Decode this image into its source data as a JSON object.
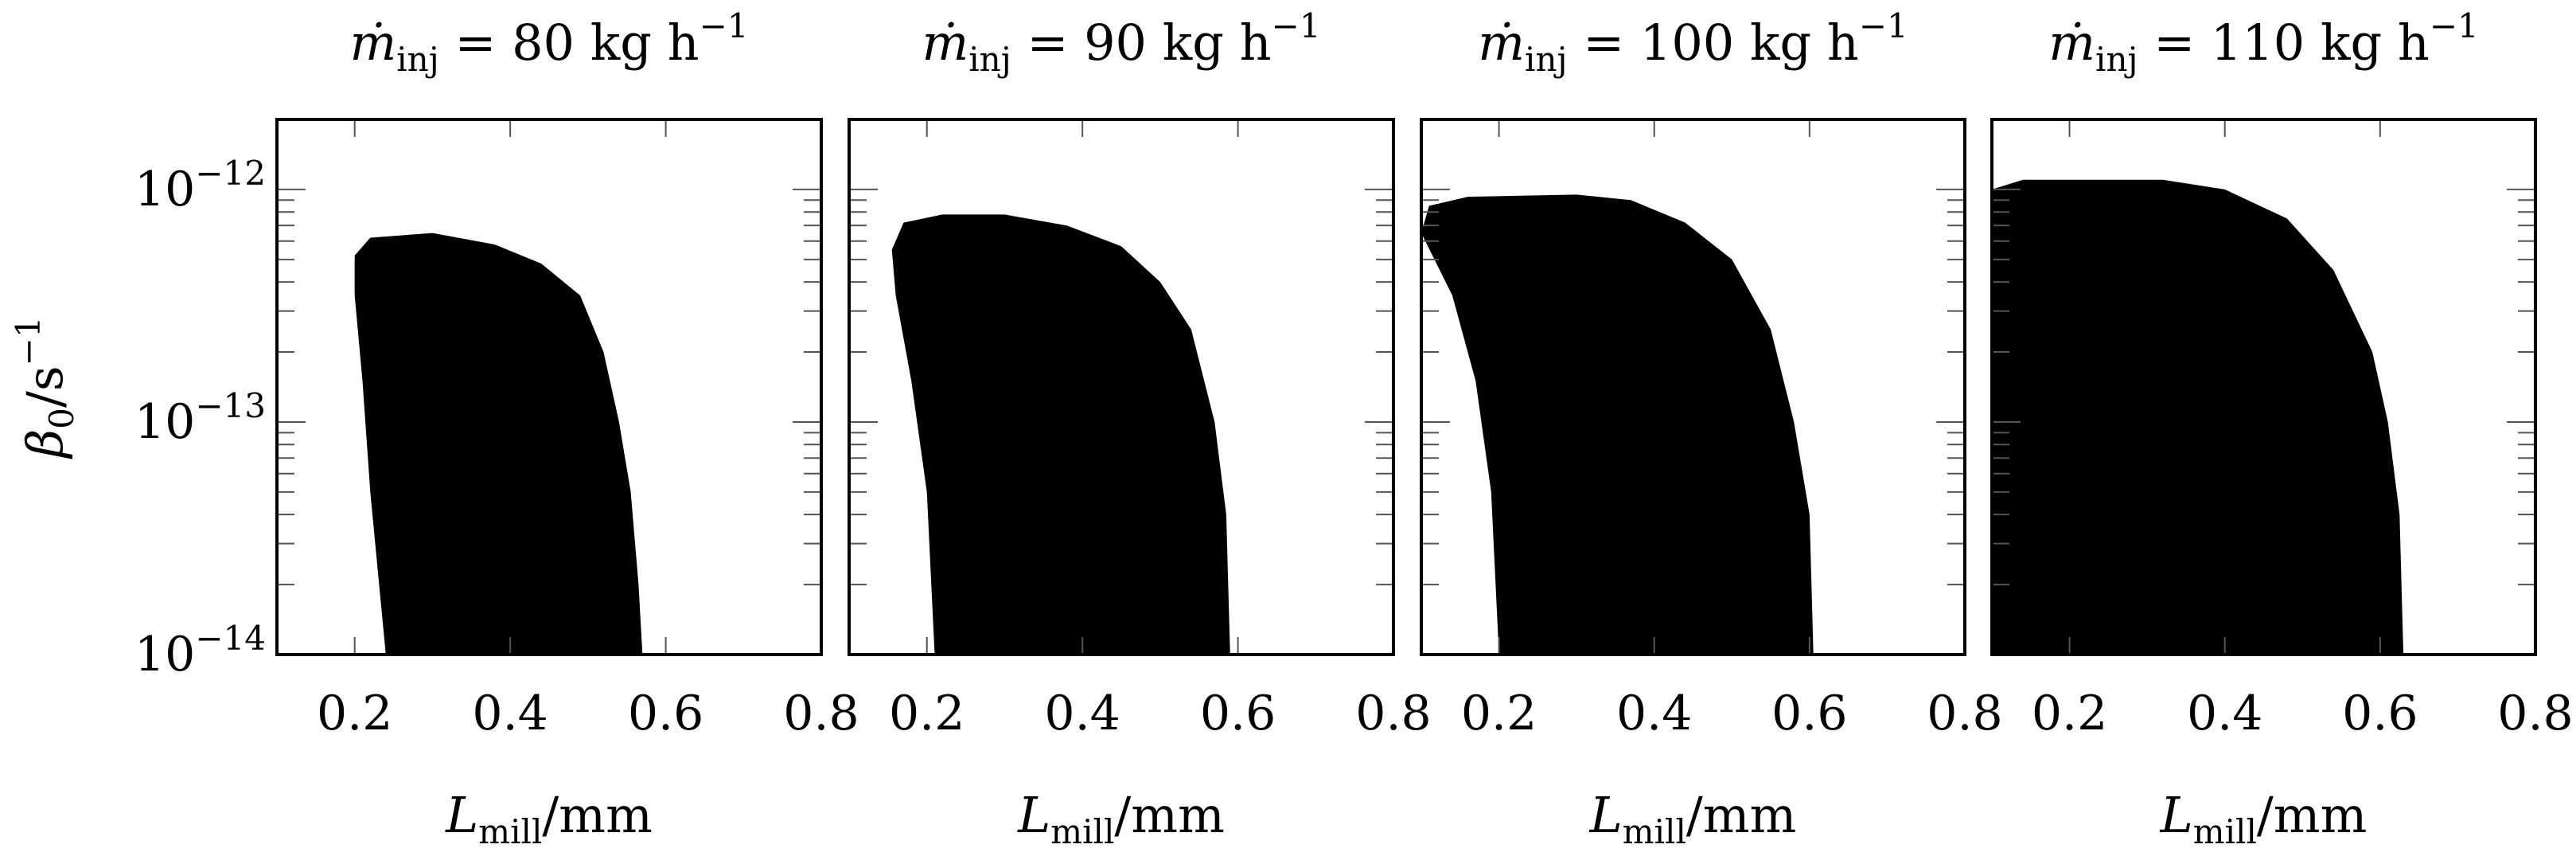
{
  "chart_data": [
    {
      "type": "area",
      "title": "ṁinj = 80 kg h−1",
      "title_parts": {
        "symbol": "ṁ",
        "sub": "inj",
        "value": " = 80 kg h",
        "sup": "−1"
      },
      "xlabel_parts": {
        "symbol": "L",
        "sub": "mill",
        "unit": "/mm"
      },
      "ylabel_parts": {
        "symbol": "β",
        "sub": "0",
        "unit": "/s",
        "sup": "−1"
      },
      "xlim": [
        0.1,
        0.8
      ],
      "ylim": [
        1e-14,
        2e-12
      ],
      "yscale": "log",
      "x_ticks": [
        0.2,
        0.4,
        0.6,
        0.8
      ],
      "x_tick_labels": [
        "0.2",
        "0.4",
        "0.6",
        "0.8"
      ],
      "y_ticks": [
        1e-14,
        1e-13,
        1e-12
      ],
      "y_tick_labels": [
        {
          "base": "10",
          "exp": "−14"
        },
        {
          "base": "10",
          "exp": "−13"
        },
        {
          "base": "10",
          "exp": "−12"
        }
      ],
      "series": [
        {
          "region": [
            [
              0.24,
              1e-14
            ],
            [
              0.22,
              5e-14
            ],
            [
              0.21,
              1.5e-13
            ],
            [
              0.2,
              3.5e-13
            ],
            [
              0.2,
              5.2e-13
            ],
            [
              0.22,
              6.2e-13
            ],
            [
              0.3,
              6.5e-13
            ],
            [
              0.38,
              5.8e-13
            ],
            [
              0.44,
              4.8e-13
            ],
            [
              0.49,
              3.5e-13
            ],
            [
              0.52,
              2e-13
            ],
            [
              0.54,
              1e-13
            ],
            [
              0.555,
              5e-14
            ],
            [
              0.565,
              2e-14
            ],
            [
              0.57,
              1e-14
            ]
          ]
        }
      ]
    },
    {
      "type": "area",
      "title": "ṁinj = 90 kg h−1",
      "title_parts": {
        "symbol": "ṁ",
        "sub": "inj",
        "value": " = 90 kg h",
        "sup": "−1"
      },
      "xlabel_parts": {
        "symbol": "L",
        "sub": "mill",
        "unit": "/mm"
      },
      "xlim": [
        0.1,
        0.8
      ],
      "ylim": [
        1e-14,
        2e-12
      ],
      "yscale": "log",
      "x_ticks": [
        0.2,
        0.4,
        0.6,
        0.8
      ],
      "x_tick_labels": [
        "0.2",
        "0.4",
        "0.6",
        "0.8"
      ],
      "y_ticks": [
        1e-14,
        1e-13,
        1e-12
      ],
      "series": [
        {
          "region": [
            [
              0.21,
              1e-14
            ],
            [
              0.2,
              5e-14
            ],
            [
              0.18,
              1.5e-13
            ],
            [
              0.16,
              3.5e-13
            ],
            [
              0.155,
              5.5e-13
            ],
            [
              0.17,
              7.2e-13
            ],
            [
              0.22,
              7.8e-13
            ],
            [
              0.3,
              7.8e-13
            ],
            [
              0.38,
              7e-13
            ],
            [
              0.45,
              5.7e-13
            ],
            [
              0.5,
              4e-13
            ],
            [
              0.54,
              2.5e-13
            ],
            [
              0.57,
              1e-13
            ],
            [
              0.585,
              4e-14
            ],
            [
              0.59,
              1e-14
            ]
          ]
        }
      ]
    },
    {
      "type": "area",
      "title": "ṁinj = 100 kg h−1",
      "title_parts": {
        "symbol": "ṁ",
        "sub": "inj",
        "value": " = 100 kg h",
        "sup": "−1"
      },
      "xlabel_parts": {
        "symbol": "L",
        "sub": "mill",
        "unit": "/mm"
      },
      "xlim": [
        0.1,
        0.8
      ],
      "ylim": [
        1e-14,
        2e-12
      ],
      "yscale": "log",
      "x_ticks": [
        0.2,
        0.4,
        0.6,
        0.8
      ],
      "x_tick_labels": [
        "0.2",
        "0.4",
        "0.6",
        "0.8"
      ],
      "y_ticks": [
        1e-14,
        1e-13,
        1e-12
      ],
      "series": [
        {
          "region": [
            [
              0.2,
              1e-14
            ],
            [
              0.19,
              5e-14
            ],
            [
              0.17,
              1.5e-13
            ],
            [
              0.14,
              3.5e-13
            ],
            [
              0.1,
              6.5e-13
            ],
            [
              0.11,
              8.5e-13
            ],
            [
              0.16,
              9.3e-13
            ],
            [
              0.3,
              9.5e-13
            ],
            [
              0.37,
              9e-13
            ],
            [
              0.44,
              7.2e-13
            ],
            [
              0.5,
              5e-13
            ],
            [
              0.55,
              2.5e-13
            ],
            [
              0.58,
              1e-13
            ],
            [
              0.6,
              4e-14
            ],
            [
              0.605,
              1e-14
            ]
          ]
        }
      ]
    },
    {
      "type": "area",
      "title": "ṁinj = 110 kg h−1",
      "title_parts": {
        "symbol": "ṁ",
        "sub": "inj",
        "value": " = 110 kg h",
        "sup": "−1"
      },
      "xlabel_parts": {
        "symbol": "L",
        "sub": "mill",
        "unit": "/mm"
      },
      "xlim": [
        0.1,
        0.8
      ],
      "ylim": [
        1e-14,
        2e-12
      ],
      "yscale": "log",
      "x_ticks": [
        0.2,
        0.4,
        0.6,
        0.8
      ],
      "x_tick_labels": [
        "0.2",
        "0.4",
        "0.6",
        "0.8"
      ],
      "y_ticks": [
        1e-14,
        1e-13,
        1e-12
      ],
      "series": [
        {
          "region": [
            [
              0.1,
              1e-14
            ],
            [
              0.1,
              1e-12
            ],
            [
              0.14,
              1.1e-12
            ],
            [
              0.32,
              1.1e-12
            ],
            [
              0.4,
              1e-12
            ],
            [
              0.48,
              7.5e-13
            ],
            [
              0.54,
              4.5e-13
            ],
            [
              0.59,
              2e-13
            ],
            [
              0.61,
              1e-13
            ],
            [
              0.625,
              4e-14
            ],
            [
              0.63,
              1e-14
            ]
          ]
        }
      ]
    }
  ]
}
